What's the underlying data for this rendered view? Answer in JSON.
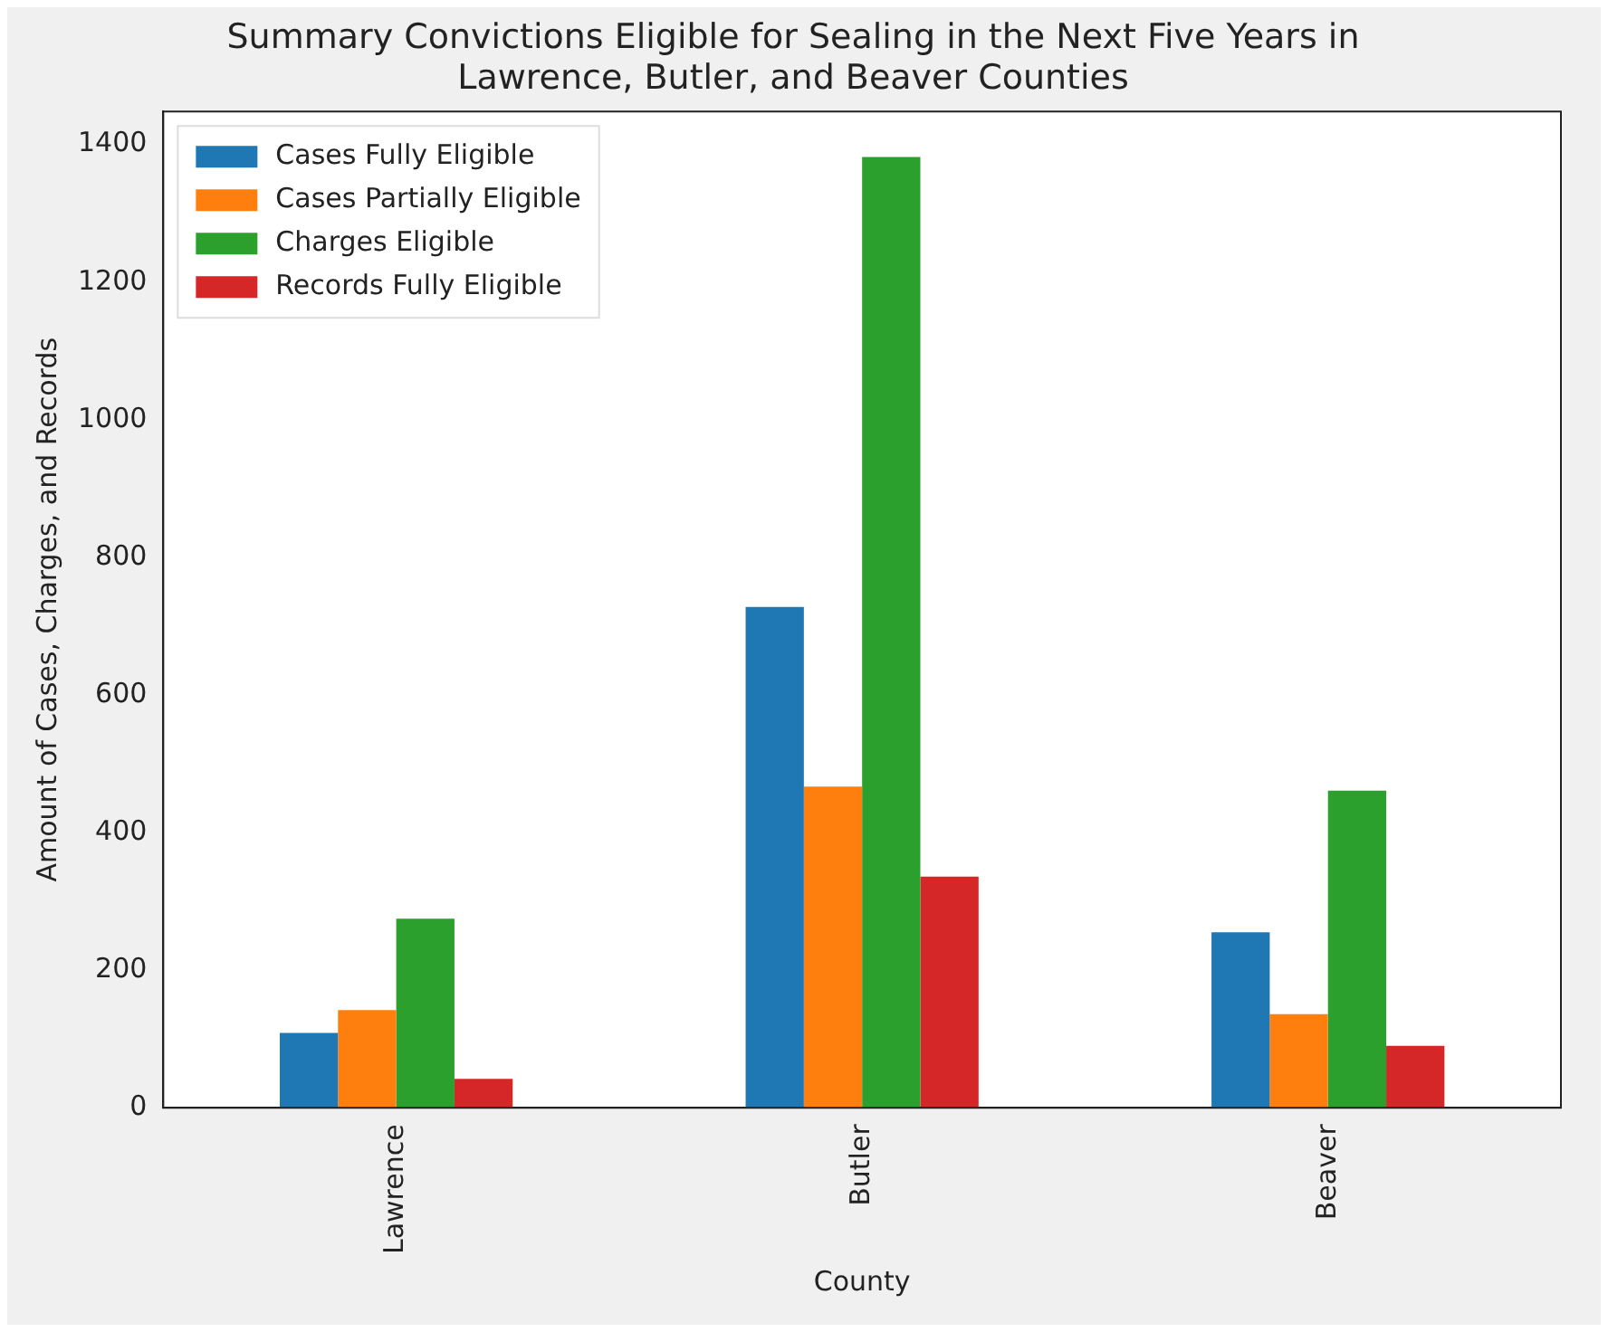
{
  "chart_data": {
    "type": "bar",
    "title": "Summary Convictions Eligible for Sealing in the Next Five Years in Lawrence, Butler, and Beaver Counties",
    "xlabel": "County",
    "ylabel": "Amount of Cases, Charges, and Records",
    "categories": [
      "Lawrence",
      "Butler",
      "Beaver"
    ],
    "series": [
      {
        "name": "Cases Fully Eligible",
        "color": "#1f77b4",
        "values": [
          109,
          728,
          255
        ]
      },
      {
        "name": "Cases Partially Eligible",
        "color": "#ff7f0e",
        "values": [
          142,
          467,
          136
        ]
      },
      {
        "name": "Charges Eligible",
        "color": "#2ca02c",
        "values": [
          275,
          1382,
          461
        ]
      },
      {
        "name": "Records Fully Eligible",
        "color": "#d62728",
        "values": [
          42,
          336,
          90
        ]
      }
    ],
    "ylim": [
      0,
      1448
    ],
    "yticks": [
      0,
      200,
      400,
      600,
      800,
      1000,
      1200,
      1400
    ],
    "grid": false,
    "legend": "top left"
  }
}
